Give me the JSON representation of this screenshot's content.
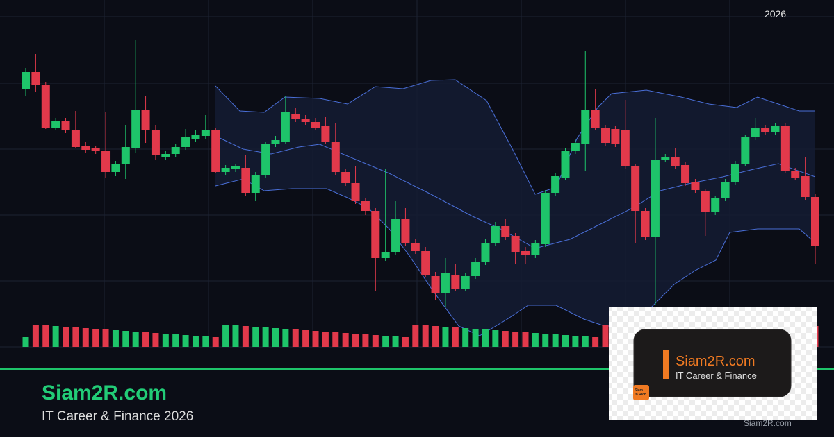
{
  "header": {
    "year": "2026"
  },
  "footer": {
    "site": "Siam2R.com",
    "tagline": "IT Career & Finance 2026",
    "watermark": "Siam2R.com"
  },
  "logo_card": {
    "title": "Siam2R.com",
    "subtitle": "IT Career & Finance",
    "badge_line1": "Siam",
    "badge_line2": "to Rich"
  }
}
